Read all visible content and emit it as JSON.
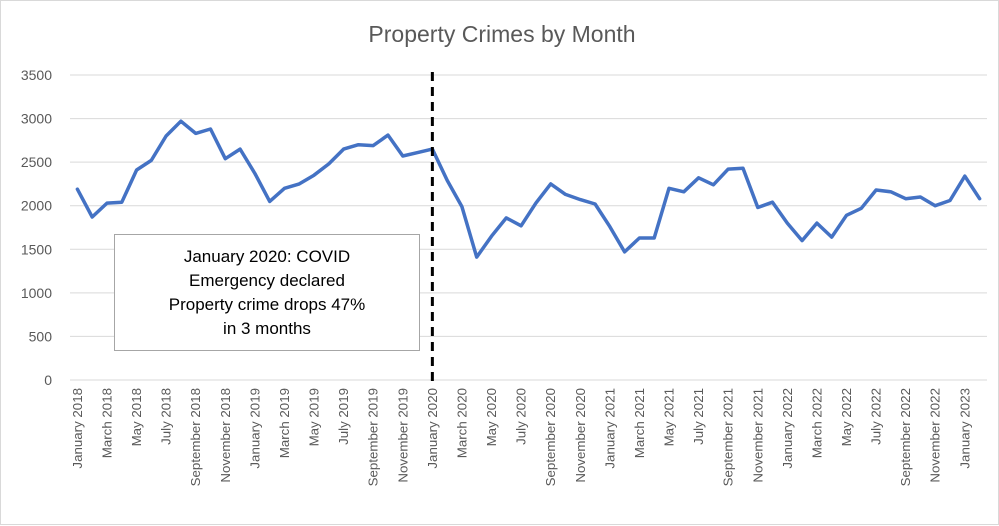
{
  "chart_data": {
    "type": "line",
    "title": "Property Crimes by Month",
    "xlabel": "",
    "ylabel": "",
    "ylim": [
      0,
      3500
    ],
    "yticks": [
      "0",
      "500",
      "1000",
      "1500",
      "2000",
      "2500",
      "3000",
      "3500"
    ],
    "grid": true,
    "legend": "none",
    "x": [
      "January 2018",
      "February 2018",
      "March 2018",
      "April 2018",
      "May 2018",
      "June 2018",
      "July 2018",
      "August 2018",
      "September 2018",
      "October 2018",
      "November 2018",
      "December 2018",
      "January 2019",
      "February 2019",
      "March 2019",
      "April 2019",
      "May 2019",
      "June 2019",
      "July 2019",
      "August 2019",
      "September 2019",
      "October 2019",
      "November 2019",
      "December 2019",
      "January 2020",
      "February 2020",
      "March 2020",
      "April 2020",
      "May 2020",
      "June 2020",
      "July 2020",
      "August 2020",
      "September 2020",
      "October 2020",
      "November 2020",
      "December 2020",
      "January 2021",
      "February 2021",
      "March 2021",
      "April 2021",
      "May 2021",
      "June 2021",
      "July 2021",
      "August 2021",
      "September 2021",
      "October 2021",
      "November 2021",
      "December 2021",
      "January 2022",
      "February 2022",
      "March 2022",
      "April 2022",
      "May 2022",
      "June 2022",
      "July 2022",
      "August 2022",
      "September 2022",
      "October 2022",
      "November 2022",
      "December 2022",
      "January 2023",
      "February 2023"
    ],
    "xtick_labels": [
      "January 2018",
      "March 2018",
      "May 2018",
      "July 2018",
      "September 2018",
      "November 2018",
      "January 2019",
      "March 2019",
      "May 2019",
      "July 2019",
      "September 2019",
      "November 2019",
      "January 2020",
      "March 2020",
      "May 2020",
      "July 2020",
      "September 2020",
      "November 2020",
      "January 2021",
      "March 2021",
      "May 2021",
      "July 2021",
      "September 2021",
      "November 2021",
      "January 2022",
      "March 2022",
      "May 2022",
      "July 2022",
      "September 2022",
      "November 2022",
      "January 2023"
    ],
    "series": [
      {
        "color": "#4472c4",
        "values": [
          2190,
          1870,
          2030,
          2040,
          2410,
          2520,
          2800,
          2970,
          2830,
          2880,
          2540,
          2650,
          2370,
          2050,
          2200,
          2250,
          2350,
          2480,
          2650,
          2700,
          2690,
          2810,
          2570,
          2610,
          2650,
          2290,
          1990,
          1410,
          1650,
          1860,
          1770,
          2030,
          2250,
          2130,
          2070,
          2020,
          1760,
          1470,
          1630,
          1630,
          2200,
          2160,
          2320,
          2240,
          2420,
          2430,
          1980,
          2040,
          1800,
          1600,
          1800,
          1640,
          1890,
          1970,
          2180,
          2160,
          2080,
          2100,
          2000,
          2060,
          2340,
          2080
        ]
      }
    ],
    "event_line": {
      "x": "January 2020",
      "style": "dashed",
      "color": "#000000"
    },
    "annotation": {
      "lines": [
        "January 2020: COVID",
        "Emergency declared",
        "Property crime drops 47%",
        "in 3 months"
      ]
    }
  }
}
